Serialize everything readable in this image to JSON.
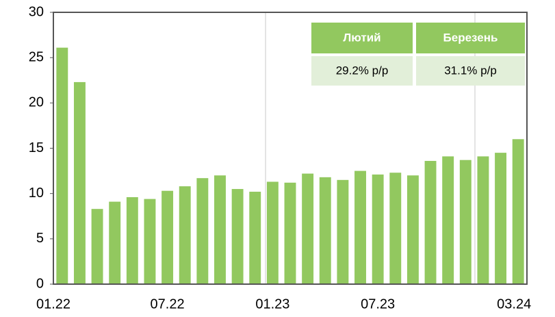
{
  "chart_data": {
    "type": "bar",
    "categories": [
      "01.22",
      null,
      null,
      null,
      null,
      null,
      "07.22",
      null,
      null,
      null,
      null,
      null,
      "01.23",
      null,
      null,
      null,
      null,
      null,
      "07.23",
      null,
      null,
      null,
      null,
      null,
      null,
      null,
      "03.24"
    ],
    "values": [
      26.1,
      22.3,
      8.3,
      9.1,
      9.6,
      9.4,
      10.3,
      10.8,
      11.7,
      12.0,
      10.5,
      10.2,
      11.3,
      11.2,
      12.2,
      11.8,
      11.5,
      12.5,
      12.1,
      12.3,
      12.0,
      13.6,
      14.1,
      13.7,
      14.1,
      14.5,
      16.0
    ],
    "color": "#92c85f",
    "ylim": [
      0,
      30
    ],
    "yticks": [
      0,
      5,
      10,
      15,
      20,
      25,
      30
    ],
    "table": {
      "headers": [
        "Лютий",
        "Березень"
      ],
      "rows": [
        [
          "29.2% р/р",
          "31.1% р/р"
        ]
      ]
    }
  }
}
